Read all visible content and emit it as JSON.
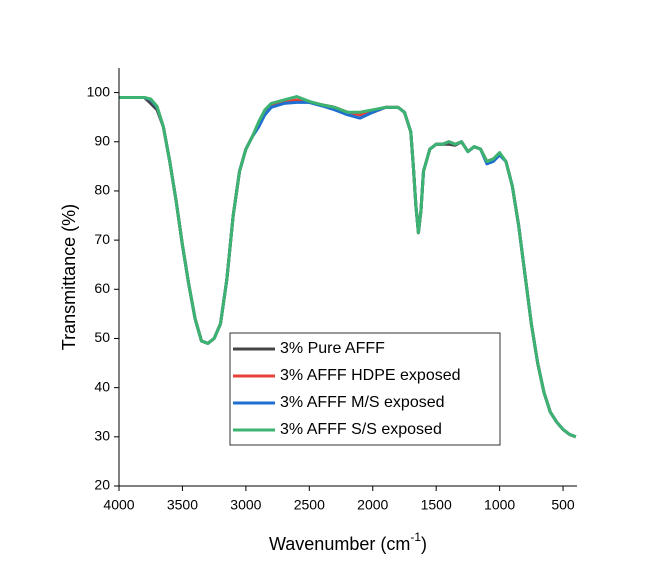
{
  "chart_data": {
    "type": "line",
    "x_label_parts": [
      "Wavenumber (cm",
      "-1",
      ")"
    ],
    "y_label": "Transmittance (%)",
    "xlim": [
      4000,
      390
    ],
    "ylim": [
      20,
      105
    ],
    "xticks": [
      4000,
      3500,
      3000,
      2500,
      2000,
      1500,
      1000,
      500
    ],
    "yticks": [
      20,
      30,
      40,
      50,
      60,
      70,
      80,
      90,
      100
    ],
    "legend": "lower-left",
    "x": [
      4000,
      3900,
      3800,
      3750,
      3700,
      3650,
      3600,
      3550,
      3500,
      3450,
      3400,
      3350,
      3300,
      3250,
      3200,
      3150,
      3100,
      3050,
      3000,
      2950,
      2900,
      2850,
      2800,
      2700,
      2600,
      2500,
      2400,
      2300,
      2200,
      2100,
      2000,
      1900,
      1800,
      1750,
      1700,
      1680,
      1660,
      1640,
      1620,
      1600,
      1550,
      1500,
      1450,
      1400,
      1350,
      1300,
      1250,
      1200,
      1150,
      1100,
      1050,
      1000,
      950,
      900,
      850,
      800,
      750,
      700,
      650,
      600,
      550,
      500,
      450,
      400
    ],
    "series": [
      {
        "name": "3% Pure AFFF",
        "color": "#454545",
        "values": [
          99,
          99,
          99,
          97.8,
          96.5,
          93,
          86,
          78,
          69,
          61,
          54,
          49.5,
          49,
          50,
          53,
          62,
          75,
          84,
          88.5,
          91,
          93.5,
          96,
          97.5,
          98,
          98.5,
          98,
          97.5,
          97,
          96,
          95.5,
          96,
          97,
          97,
          96,
          92,
          85,
          77,
          71.5,
          76,
          84,
          88.5,
          89.5,
          89.5,
          89.5,
          89.3,
          90,
          88,
          89,
          88.5,
          86,
          86.5,
          87.5,
          86,
          81,
          73,
          63,
          53,
          45,
          39,
          35,
          33,
          31.5,
          30.5,
          30
        ]
      },
      {
        "name": "3% AFFF HDPE exposed",
        "color": "#e8413a",
        "values": [
          99,
          99,
          99,
          98.5,
          97,
          93,
          86,
          78,
          69,
          61,
          54,
          49.5,
          49,
          50,
          53,
          62,
          75,
          84,
          88.5,
          91,
          93.5,
          96,
          97.5,
          98,
          98.5,
          98,
          97.5,
          97,
          96,
          95.5,
          96,
          97,
          97,
          96,
          92,
          85,
          77,
          71.5,
          76,
          84,
          88.5,
          89.5,
          89.5,
          90,
          89.5,
          90,
          88,
          89,
          88.5,
          86,
          86.5,
          87.5,
          86,
          81,
          73,
          63,
          53,
          45,
          39,
          35,
          33,
          31.5,
          30.5,
          30
        ]
      },
      {
        "name": "3% AFFF M/S exposed",
        "color": "#1f6fd0",
        "values": [
          99,
          99,
          99,
          98.5,
          97,
          93,
          86,
          78,
          69,
          61,
          54,
          49.5,
          49,
          50,
          53,
          62,
          75,
          84,
          88.5,
          91,
          93,
          95.5,
          97,
          97.8,
          98,
          98,
          97.3,
          96.5,
          95.5,
          94.8,
          96,
          97,
          97,
          96,
          92,
          85,
          77,
          71.5,
          76,
          84,
          88.5,
          89.5,
          89.5,
          90,
          89.5,
          90,
          88,
          89,
          88.5,
          85.5,
          86,
          87.3,
          86,
          81,
          73,
          63,
          53,
          45,
          39,
          35,
          33,
          31.5,
          30.5,
          30
        ]
      },
      {
        "name": "3% AFFF S/S exposed",
        "color": "#3cb371",
        "values": [
          99,
          99,
          99,
          98.7,
          97.2,
          93,
          86,
          78,
          69,
          61,
          54,
          49.5,
          49,
          50,
          53,
          62,
          75,
          84,
          88.5,
          91,
          94,
          96.5,
          97.8,
          98.5,
          99.2,
          98.2,
          97.5,
          97,
          96,
          96,
          96.5,
          97,
          97,
          96,
          92,
          85,
          77,
          71.5,
          76,
          84,
          88.5,
          89.5,
          89.5,
          90,
          89.5,
          90,
          88,
          89,
          88.5,
          86,
          86.5,
          87.8,
          86,
          81,
          73,
          63,
          53,
          45,
          39,
          35,
          33,
          31.5,
          30.5,
          30
        ]
      }
    ]
  }
}
